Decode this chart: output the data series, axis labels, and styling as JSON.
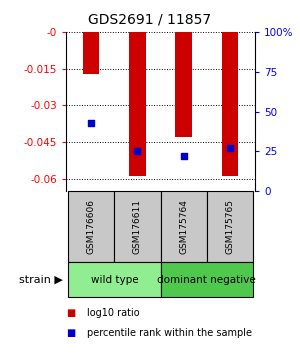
{
  "title": "GDS2691 / 11857",
  "samples": [
    "GSM176606",
    "GSM176611",
    "GSM175764",
    "GSM175765"
  ],
  "log10_ratio": [
    -0.017,
    -0.059,
    -0.043,
    -0.059
  ],
  "percentile_rank": [
    0.43,
    0.25,
    0.22,
    0.27
  ],
  "ylim_left": [
    -0.065,
    0.0
  ],
  "ylim_right": [
    0.0,
    1.0
  ],
  "yticks_left": [
    0.0,
    -0.015,
    -0.03,
    -0.045,
    -0.06
  ],
  "ytick_labels_left": [
    "-0",
    "-0.015",
    "-0.03",
    "-0.045",
    "-0.06"
  ],
  "yticks_right": [
    0.0,
    0.25,
    0.5,
    0.75,
    1.0
  ],
  "ytick_labels_right": [
    "0",
    "25",
    "50",
    "75",
    "100%"
  ],
  "groups": [
    {
      "name": "wild type",
      "indices": [
        0,
        1
      ],
      "color": "#90EE90"
    },
    {
      "name": "dominant negative",
      "indices": [
        2,
        3
      ],
      "color": "#4EC94E"
    }
  ],
  "bar_color": "#CC0000",
  "dot_color": "#0000CC",
  "bar_width": 0.35,
  "dot_size": 25,
  "background_color": "#ffffff",
  "label_box_color": "#C8C8C8",
  "strain_label": "strain",
  "legend_items": [
    {
      "label": "log10 ratio",
      "color": "#CC0000"
    },
    {
      "label": "percentile rank within the sample",
      "color": "#0000CC"
    }
  ]
}
